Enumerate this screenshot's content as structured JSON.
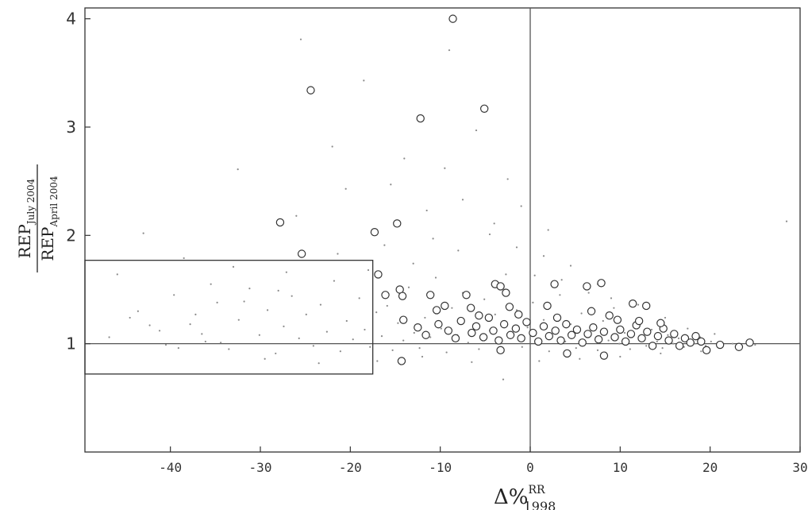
{
  "chart_data": {
    "type": "scatter",
    "xlabel": {
      "main": "Δ%",
      "sup": "RR",
      "sub": "1998"
    },
    "ylabel": {
      "num_main": "REP",
      "num_sub": "July 2004",
      "den_main": "REP",
      "den_sub": "April 2004"
    },
    "xlim": [
      -49.5,
      30
    ],
    "ylim": [
      0,
      4.1
    ],
    "x_ticks": [
      "-40",
      "-30",
      "-20",
      "-10",
      "0",
      "10",
      "20",
      "30"
    ],
    "x_tick_values": [
      -40,
      -30,
      -20,
      -10,
      0,
      10,
      20,
      30
    ],
    "y_ticks": [
      "1",
      "2",
      "3",
      "4"
    ],
    "y_tick_values": [
      1,
      2,
      3,
      4
    ],
    "reference_lines": {
      "vertical_x": 0,
      "horizontal_y": 1
    },
    "highlight_box": {
      "x": [
        -49.5,
        -17.5
      ],
      "y": [
        0.72,
        1.77
      ]
    },
    "grid": false,
    "series": [
      {
        "marker": "open-circle",
        "points": [
          [
            -8.6,
            4.0
          ],
          [
            -24.4,
            3.34
          ],
          [
            -5.1,
            3.17
          ],
          [
            -12.2,
            3.08
          ],
          [
            -27.8,
            2.12
          ],
          [
            -14.8,
            2.11
          ],
          [
            -17.3,
            2.03
          ],
          [
            -25.4,
            1.83
          ],
          [
            -16.9,
            1.64
          ],
          [
            -14.5,
            1.5
          ],
          [
            -16.1,
            1.45
          ],
          [
            -14.2,
            1.44
          ],
          [
            -11.1,
            1.45
          ],
          [
            -7.1,
            1.45
          ],
          [
            -3.9,
            1.55
          ],
          [
            -3.3,
            1.53
          ],
          [
            -2.7,
            1.47
          ],
          [
            2.7,
            1.55
          ],
          [
            6.3,
            1.53
          ],
          [
            7.9,
            1.56
          ],
          [
            11.4,
            1.37
          ],
          [
            12.9,
            1.35
          ],
          [
            -9.5,
            1.35
          ],
          [
            -10.4,
            1.31
          ],
          [
            -6.6,
            1.33
          ],
          [
            -2.3,
            1.34
          ],
          [
            1.9,
            1.35
          ],
          [
            -14.3,
            0.84
          ],
          [
            -3.3,
            0.94
          ],
          [
            4.1,
            0.91
          ],
          [
            8.2,
            0.89
          ],
          [
            19.6,
            0.94
          ],
          [
            21.1,
            0.99
          ],
          [
            23.2,
            0.97
          ],
          [
            24.4,
            1.01
          ],
          [
            -14.1,
            1.22
          ],
          [
            -12.5,
            1.15
          ],
          [
            -11.6,
            1.08
          ],
          [
            -10.2,
            1.18
          ],
          [
            -9.1,
            1.12
          ],
          [
            -8.3,
            1.05
          ],
          [
            -7.7,
            1.21
          ],
          [
            -6.5,
            1.1
          ],
          [
            -6.0,
            1.16
          ],
          [
            -5.2,
            1.06
          ],
          [
            -4.6,
            1.24
          ],
          [
            -4.1,
            1.12
          ],
          [
            -3.5,
            1.03
          ],
          [
            -2.9,
            1.18
          ],
          [
            -2.2,
            1.08
          ],
          [
            -1.6,
            1.14
          ],
          [
            -1.0,
            1.05
          ],
          [
            -0.4,
            1.2
          ],
          [
            0.3,
            1.1
          ],
          [
            0.9,
            1.02
          ],
          [
            1.5,
            1.16
          ],
          [
            2.1,
            1.07
          ],
          [
            2.8,
            1.12
          ],
          [
            3.4,
            1.03
          ],
          [
            4.0,
            1.18
          ],
          [
            4.6,
            1.08
          ],
          [
            5.2,
            1.13
          ],
          [
            5.8,
            1.01
          ],
          [
            6.4,
            1.09
          ],
          [
            7.0,
            1.15
          ],
          [
            7.6,
            1.04
          ],
          [
            8.2,
            1.11
          ],
          [
            8.8,
            1.26
          ],
          [
            9.4,
            1.06
          ],
          [
            10.0,
            1.13
          ],
          [
            10.6,
            1.02
          ],
          [
            11.2,
            1.09
          ],
          [
            11.8,
            1.17
          ],
          [
            12.4,
            1.05
          ],
          [
            13.0,
            1.11
          ],
          [
            13.6,
            0.98
          ],
          [
            14.2,
            1.07
          ],
          [
            14.8,
            1.14
          ],
          [
            15.4,
            1.03
          ],
          [
            16.0,
            1.09
          ],
          [
            16.6,
            0.98
          ],
          [
            17.2,
            1.05
          ],
          [
            17.8,
            1.01
          ],
          [
            18.4,
            1.07
          ],
          [
            19.0,
            1.02
          ],
          [
            -5.7,
            1.26
          ],
          [
            -1.3,
            1.27
          ],
          [
            3.0,
            1.24
          ],
          [
            6.8,
            1.3
          ],
          [
            9.7,
            1.22
          ],
          [
            12.1,
            1.21
          ],
          [
            14.5,
            1.19
          ]
        ]
      },
      {
        "marker": "small-dot",
        "points": [
          [
            -45.9,
            1.64
          ],
          [
            -43.6,
            1.3
          ],
          [
            -41.2,
            1.12
          ],
          [
            -39.6,
            1.45
          ],
          [
            -37.8,
            1.18
          ],
          [
            -36.1,
            1.02
          ],
          [
            -34.8,
            1.38
          ],
          [
            -33.5,
            0.95
          ],
          [
            -32.4,
            1.22
          ],
          [
            -31.2,
            1.51
          ],
          [
            -30.1,
            1.08
          ],
          [
            -29.2,
            1.31
          ],
          [
            -28.3,
            0.91
          ],
          [
            -27.4,
            1.16
          ],
          [
            -26.5,
            1.44
          ],
          [
            -25.7,
            1.05
          ],
          [
            -24.9,
            1.27
          ],
          [
            -24.1,
            0.98
          ],
          [
            -23.3,
            1.36
          ],
          [
            -22.6,
            1.11
          ],
          [
            -21.8,
            1.58
          ],
          [
            -21.1,
            0.93
          ],
          [
            -20.4,
            1.21
          ],
          [
            -19.7,
            1.04
          ],
          [
            -19.0,
            1.42
          ],
          [
            -18.4,
            1.13
          ],
          [
            -17.8,
            0.97
          ],
          [
            -17.1,
            1.29
          ],
          [
            -16.5,
            1.07
          ],
          [
            -15.9,
            1.35
          ],
          [
            -15.3,
            0.94
          ],
          [
            -14.7,
            1.19
          ],
          [
            -14.1,
            1.03
          ],
          [
            -13.5,
            1.52
          ],
          [
            -12.9,
            1.1
          ],
          [
            -12.3,
            0.96
          ],
          [
            -11.7,
            1.24
          ],
          [
            -11.1,
            1.06
          ],
          [
            -10.5,
            1.61
          ],
          [
            -9.9,
            1.14
          ],
          [
            -9.3,
            0.92
          ],
          [
            -8.7,
            1.33
          ],
          [
            -8.1,
            1.08
          ],
          [
            -7.5,
            1.47
          ],
          [
            -6.9,
            1.01
          ],
          [
            -6.3,
            1.18
          ],
          [
            -5.7,
            0.95
          ],
          [
            -5.1,
            1.41
          ],
          [
            -4.5,
            1.12
          ],
          [
            -3.9,
            1.27
          ],
          [
            -3.3,
            1.0
          ],
          [
            -2.7,
            1.64
          ],
          [
            -2.1,
            1.09
          ],
          [
            -1.5,
            1.31
          ],
          [
            -0.9,
            0.97
          ],
          [
            -0.3,
            1.15
          ],
          [
            0.3,
            1.38
          ],
          [
            0.9,
            1.04
          ],
          [
            1.5,
            1.22
          ],
          [
            2.1,
            0.93
          ],
          [
            2.7,
            1.12
          ],
          [
            3.3,
            1.45
          ],
          [
            3.9,
            1.02
          ],
          [
            4.5,
            1.18
          ],
          [
            5.1,
            0.96
          ],
          [
            5.7,
            1.28
          ],
          [
            6.3,
            1.06
          ],
          [
            6.9,
            1.15
          ],
          [
            7.5,
            0.94
          ],
          [
            8.1,
            1.21
          ],
          [
            8.7,
            1.03
          ],
          [
            9.3,
            1.33
          ],
          [
            9.9,
            1.0
          ],
          [
            10.5,
            1.1
          ],
          [
            11.1,
            0.95
          ],
          [
            11.7,
            1.19
          ],
          [
            12.3,
            1.04
          ],
          [
            12.9,
            0.98
          ],
          [
            13.5,
            1.13
          ],
          [
            14.1,
            1.02
          ],
          [
            14.7,
            0.96
          ],
          [
            15.3,
            1.08
          ],
          [
            15.9,
            1.0
          ],
          [
            16.5,
            1.05
          ],
          [
            17.1,
            0.97
          ],
          [
            17.7,
            1.03
          ],
          [
            18.3,
            1.0
          ],
          [
            18.9,
            1.06
          ],
          [
            19.5,
            0.98
          ],
          [
            20.1,
            1.02
          ],
          [
            -38.5,
            1.79
          ],
          [
            -33.0,
            1.71
          ],
          [
            -26.0,
            2.18
          ],
          [
            -20.5,
            2.43
          ],
          [
            -15.5,
            2.47
          ],
          [
            -11.5,
            2.23
          ],
          [
            -7.5,
            2.33
          ],
          [
            -4.5,
            2.01
          ],
          [
            -1.5,
            1.89
          ],
          [
            1.5,
            1.81
          ],
          [
            4.5,
            1.72
          ],
          [
            7.5,
            1.55
          ],
          [
            -22.0,
            2.82
          ],
          [
            -18.5,
            3.43
          ],
          [
            -14.0,
            2.71
          ],
          [
            -9.5,
            2.62
          ],
          [
            -6.0,
            2.97
          ],
          [
            -2.5,
            2.52
          ],
          [
            -25.5,
            3.81
          ],
          [
            -9.0,
            3.71
          ],
          [
            -32.5,
            2.61
          ],
          [
            -43.0,
            2.02
          ],
          [
            -36.5,
            1.09
          ],
          [
            -40.5,
            0.99
          ],
          [
            -29.5,
            0.86
          ],
          [
            -23.5,
            0.82
          ],
          [
            -17.0,
            0.84
          ],
          [
            -12.0,
            0.88
          ],
          [
            -6.5,
            0.83
          ],
          [
            -3.0,
            0.67
          ],
          [
            1.0,
            0.84
          ],
          [
            5.5,
            0.86
          ],
          [
            10.0,
            0.88
          ],
          [
            14.5,
            0.91
          ],
          [
            19.0,
            0.93
          ],
          [
            22.5,
            1.0
          ],
          [
            25.0,
            0.99
          ],
          [
            -44.5,
            1.24
          ],
          [
            -35.5,
            1.55
          ],
          [
            -28.0,
            1.49
          ],
          [
            -18.0,
            1.68
          ],
          [
            -13.0,
            1.74
          ],
          [
            -8.0,
            1.86
          ],
          [
            -4.0,
            2.11
          ],
          [
            0.5,
            1.63
          ],
          [
            3.5,
            1.59
          ],
          [
            6.5,
            1.47
          ],
          [
            9.0,
            1.42
          ],
          [
            12.0,
            1.36
          ],
          [
            15.0,
            1.24
          ],
          [
            17.5,
            1.14
          ],
          [
            20.5,
            1.09
          ],
          [
            2.0,
            2.05
          ],
          [
            -1.0,
            2.27
          ],
          [
            28.5,
            2.13
          ],
          [
            -10.8,
            1.97
          ],
          [
            -16.2,
            1.91
          ],
          [
            -21.4,
            1.83
          ],
          [
            -27.1,
            1.66
          ],
          [
            -31.8,
            1.39
          ],
          [
            -37.2,
            1.27
          ],
          [
            -42.3,
            1.17
          ],
          [
            -46.8,
            1.06
          ],
          [
            -39.1,
            0.96
          ],
          [
            -34.4,
            1.01
          ]
        ]
      }
    ]
  }
}
